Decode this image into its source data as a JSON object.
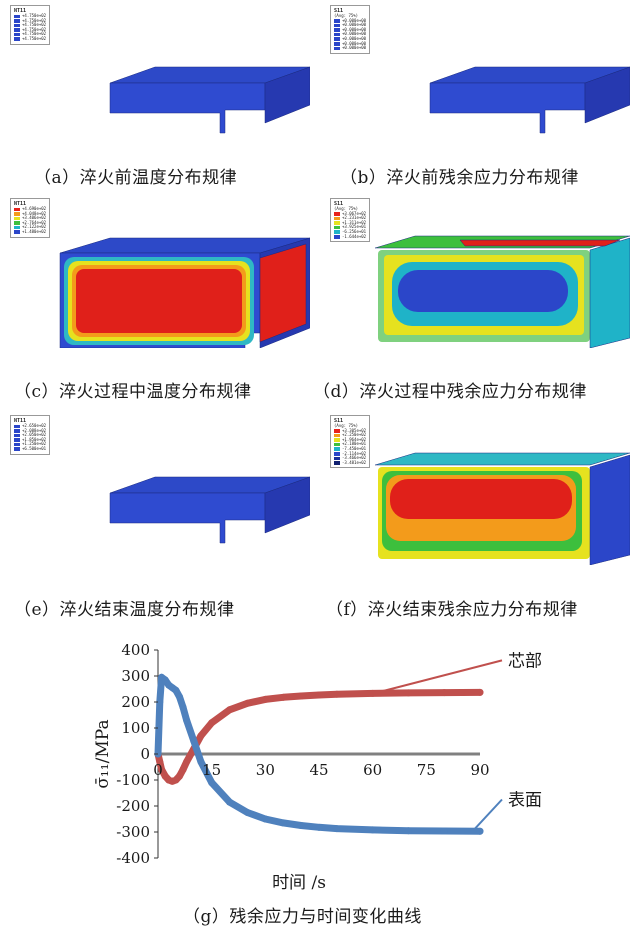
{
  "colors": {
    "fem_blue": "#2b46c9",
    "fem_red": "#e0201a",
    "series_core": "#c0504d",
    "series_surface": "#4f81bd",
    "zero_line": "#808080"
  },
  "panels": [
    {
      "id": "a",
      "caption": "（a）淬火前温度分布规律",
      "legend": {
        "title": "NT11",
        "subtitle": "",
        "values": [
          "+4.750e+02",
          "+4.750e+02",
          "+4.750e+02",
          "+4.750e+02",
          "+4.750e+02",
          "+4.750e+02"
        ]
      }
    },
    {
      "id": "b",
      "caption": "（b）淬火前残余应力分布规律",
      "legend": {
        "title": "S11",
        "subtitle": "(Avg: 75%)",
        "values": [
          "+0.000e+00",
          "+0.000e+00",
          "+0.000e+00",
          "+0.000e+00",
          "+0.000e+00",
          "+0.000e+00",
          "+0.000e+00"
        ]
      }
    },
    {
      "id": "c",
      "caption": "（c）淬火过程中温度分布规律",
      "legend": {
        "title": "NT11",
        "subtitle": "",
        "values": [
          "+4.690e+02",
          "+4.048e+02",
          "+3.406e+02",
          "+2.764e+02",
          "+2.122e+02",
          "+1.480e+02"
        ]
      }
    },
    {
      "id": "d",
      "caption": "（d）淬火过程中残余应力分布规律",
      "legend": {
        "title": "S11",
        "subtitle": "(Avg: 75%)",
        "values": [
          "+3.067e+02",
          "+2.231e+02",
          "+1.311e+02",
          "+3.925e+01",
          "-6.256e+01",
          "-1.644e+02"
        ]
      }
    },
    {
      "id": "e",
      "caption": "（e）淬火结束温度分布规律",
      "legend": {
        "title": "NT11",
        "subtitle": "",
        "values": [
          "+2.650e+02",
          "+2.088e+02",
          "+2.050e+02",
          "+1.850e+02",
          "+1.250e+02",
          "+6.500e+01"
        ]
      }
    },
    {
      "id": "f",
      "caption": "（f）淬火结束残余应力分布规律",
      "legend": {
        "title": "S11",
        "subtitle": "(Avg: 75%)",
        "values": [
          "+3.305e+02",
          "+2.250e+02",
          "+1.964e+02",
          "+2.180e+01",
          "-7.450e+01",
          "-2.114e+02",
          "-3.466e+02",
          "-3.481e+02"
        ]
      }
    }
  ],
  "chart_caption": "（g）残余应力与时间变化曲线",
  "chart_data": {
    "type": "line",
    "xlabel": "时间 /s",
    "ylabel": "σ̄₁₁/MPa",
    "xlim": [
      0,
      90
    ],
    "ylim": [
      -400,
      400
    ],
    "x_ticks": [
      "0",
      "15",
      "30",
      "45",
      "60",
      "75",
      "90"
    ],
    "y_ticks": [
      "400",
      "300",
      "200",
      "100",
      "0",
      "-100",
      "-200",
      "-300",
      "-400"
    ],
    "annotations": [
      "芯部",
      "表面"
    ],
    "series": [
      {
        "name": "芯部",
        "x": [
          0,
          0.5,
          1,
          2,
          3,
          4,
          5,
          6,
          7,
          8,
          10,
          12,
          15,
          20,
          25,
          30,
          35,
          40,
          45,
          50,
          60,
          70,
          80,
          90
        ],
        "values": [
          0,
          -30,
          -60,
          -85,
          -100,
          -105,
          -100,
          -85,
          -60,
          -30,
          20,
          70,
          120,
          170,
          195,
          210,
          218,
          223,
          227,
          230,
          233,
          235,
          236,
          237
        ]
      },
      {
        "name": "表面",
        "x": [
          0,
          0.5,
          1,
          2,
          3,
          4,
          5,
          6,
          7,
          8,
          10,
          12,
          15,
          20,
          25,
          30,
          35,
          40,
          45,
          50,
          60,
          70,
          80,
          90
        ],
        "values": [
          0,
          200,
          295,
          285,
          265,
          255,
          245,
          220,
          180,
          130,
          50,
          -30,
          -110,
          -185,
          -225,
          -250,
          -265,
          -275,
          -282,
          -287,
          -292,
          -295,
          -296,
          -297
        ]
      }
    ]
  }
}
